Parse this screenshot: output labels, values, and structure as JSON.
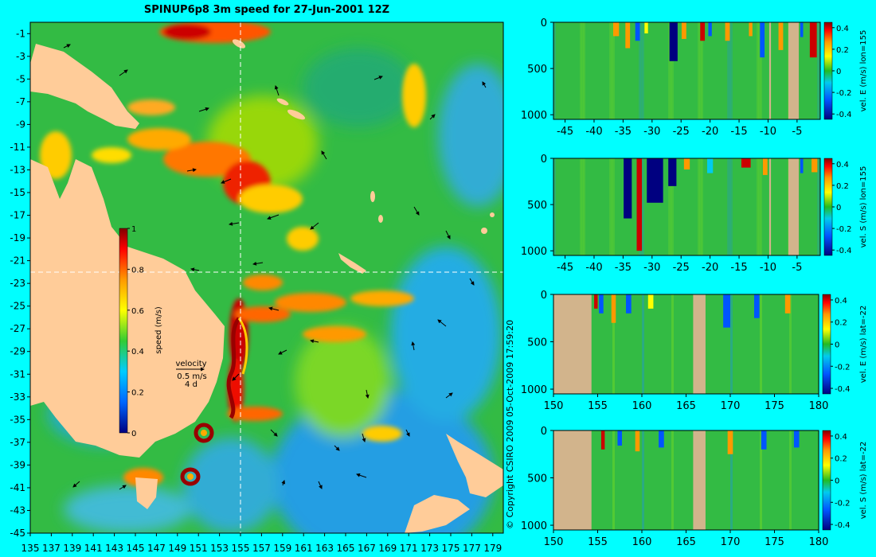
{
  "title": "SPINUP6p8 3m speed for 27-Jun-2001 12Z",
  "copyright": "© Copyright CSIRO 2009   05-Oct-2009 17:59:20",
  "colors": {
    "background": "#00ffff",
    "land": "#ffcc99",
    "section_land": "#d2b48c",
    "guide": "#ffffff"
  },
  "chart_data": [
    {
      "type": "heatmap",
      "title": "SPINUP6p8 3m speed for 27-Jun-2001 12Z",
      "xlabel": "",
      "ylabel": "",
      "x_ticks": [
        "135",
        "137",
        "139",
        "141",
        "143",
        "145",
        "147",
        "149",
        "151",
        "153",
        "155",
        "157",
        "159",
        "161",
        "163",
        "165",
        "167",
        "169",
        "171",
        "173",
        "175",
        "177",
        "179"
      ],
      "y_ticks": [
        "-1",
        "-3",
        "-5",
        "-7",
        "-9",
        "-11",
        "-13",
        "-15",
        "-17",
        "-19",
        "-21",
        "-23",
        "-25",
        "-27",
        "-29",
        "-31",
        "-33",
        "-35",
        "-37",
        "-39",
        "-41",
        "-43",
        "-45"
      ],
      "xlim": [
        135,
        180
      ],
      "ylim": [
        -45,
        0
      ],
      "guides": {
        "lon": 155,
        "lat": -22
      },
      "colorbar": {
        "label": "speed (m/s)",
        "ticks": [
          "0",
          "0.2",
          "0.4",
          "0.6",
          "0.8",
          "1"
        ],
        "range": [
          0,
          1
        ]
      },
      "vector_key": {
        "label": "velocity",
        "speed": "0.5 m/s",
        "interval": "4 d"
      }
    },
    {
      "type": "heatmap",
      "xlim": [
        -47,
        -1
      ],
      "ylim": [
        1050,
        0
      ],
      "x_ticks": [
        "-45",
        "-40",
        "-35",
        "-30",
        "-25",
        "-20",
        "-15",
        "-10",
        "-5"
      ],
      "y_ticks": [
        "0",
        "500",
        "1000"
      ],
      "colorbar": {
        "label": "vel. E (m/s) lon=155",
        "ticks": [
          "0.4",
          "0.2",
          "0",
          "-0.2",
          "-0.4"
        ],
        "range": [
          -0.45,
          0.45
        ]
      },
      "land_bands": [
        [
          -6.5,
          -4.7
        ],
        [
          -9.8,
          -9.5
        ]
      ],
      "features": [
        {
          "x": -36.2,
          "w": 1.0,
          "depth": 150,
          "value": 0.35
        },
        {
          "x": -34.2,
          "w": 0.8,
          "depth": 280,
          "value": 0.3
        },
        {
          "x": -32.5,
          "w": 0.8,
          "depth": 200,
          "value": -0.35
        },
        {
          "x": -31.0,
          "w": 0.6,
          "depth": 120,
          "value": 0.2
        },
        {
          "x": -26.3,
          "w": 1.4,
          "depth": 420,
          "value": -0.45
        },
        {
          "x": -24.5,
          "w": 0.8,
          "depth": 180,
          "value": 0.25
        },
        {
          "x": -21.3,
          "w": 0.8,
          "depth": 200,
          "value": 0.4
        },
        {
          "x": -20.0,
          "w": 0.6,
          "depth": 150,
          "value": -0.3
        },
        {
          "x": -17.0,
          "w": 0.8,
          "depth": 200,
          "value": 0.3
        },
        {
          "x": -13.0,
          "w": 0.6,
          "depth": 150,
          "value": 0.25
        },
        {
          "x": -11.0,
          "w": 0.8,
          "depth": 380,
          "value": -0.25
        },
        {
          "x": -7.8,
          "w": 0.8,
          "depth": 300,
          "value": 0.3
        },
        {
          "x": -4.2,
          "w": 0.5,
          "depth": 160,
          "value": -0.3
        },
        {
          "x": -2.2,
          "w": 1.2,
          "depth": 380,
          "value": 0.45
        }
      ]
    },
    {
      "type": "heatmap",
      "xlim": [
        -47,
        -1
      ],
      "ylim": [
        1050,
        0
      ],
      "x_ticks": [
        "-45",
        "-40",
        "-35",
        "-30",
        "-25",
        "-20",
        "-15",
        "-10",
        "-5"
      ],
      "y_ticks": [
        "0",
        "500",
        "1000"
      ],
      "colorbar": {
        "label": "vel. S (m/s) lon=155",
        "ticks": [
          "0.4",
          "0.2",
          "0",
          "-0.2",
          "-0.4"
        ],
        "range": [
          -0.45,
          0.45
        ]
      },
      "land_bands": [
        [
          -6.5,
          -4.7
        ],
        [
          -9.8,
          -9.5
        ]
      ],
      "features": [
        {
          "x": -34.2,
          "w": 1.4,
          "depth": 650,
          "value": -0.45
        },
        {
          "x": -32.2,
          "w": 0.9,
          "depth": 1000,
          "value": 0.45
        },
        {
          "x": -29.5,
          "w": 2.8,
          "depth": 480,
          "value": -0.45
        },
        {
          "x": -26.5,
          "w": 1.4,
          "depth": 300,
          "value": -0.4
        },
        {
          "x": -24.0,
          "w": 1.0,
          "depth": 120,
          "value": 0.3
        },
        {
          "x": -20.0,
          "w": 1.0,
          "depth": 160,
          "value": -0.2
        },
        {
          "x": -13.8,
          "w": 1.6,
          "depth": 100,
          "value": 0.45
        },
        {
          "x": -10.5,
          "w": 0.8,
          "depth": 180,
          "value": 0.35
        },
        {
          "x": -4.2,
          "w": 0.5,
          "depth": 160,
          "value": -0.3
        },
        {
          "x": -2.0,
          "w": 1.0,
          "depth": 150,
          "value": 0.25
        }
      ]
    },
    {
      "type": "heatmap",
      "xlim": [
        150,
        180
      ],
      "ylim": [
        1050,
        0
      ],
      "x_ticks": [
        "150",
        "155",
        "160",
        "165",
        "170",
        "175",
        "180"
      ],
      "y_ticks": [
        "0",
        "500",
        "1000"
      ],
      "colorbar": {
        "label": "vel. E (m/s) lat=-22",
        "ticks": [
          "0.4",
          "0.2",
          "0",
          "-0.2",
          "-0.4"
        ],
        "range": [
          -0.45,
          0.45
        ]
      },
      "land_bands": [
        [
          150,
          154.3
        ],
        [
          165.8,
          167.2
        ]
      ],
      "features": [
        {
          "x": 154.8,
          "w": 0.4,
          "depth": 150,
          "value": 0.45
        },
        {
          "x": 155.4,
          "w": 0.5,
          "depth": 200,
          "value": -0.35
        },
        {
          "x": 156.8,
          "w": 0.5,
          "depth": 300,
          "value": 0.3
        },
        {
          "x": 158.5,
          "w": 0.6,
          "depth": 200,
          "value": -0.25
        },
        {
          "x": 161.0,
          "w": 0.6,
          "depth": 150,
          "value": 0.2
        },
        {
          "x": 169.6,
          "w": 0.8,
          "depth": 350,
          "value": -0.35
        },
        {
          "x": 173.0,
          "w": 0.6,
          "depth": 250,
          "value": -0.25
        },
        {
          "x": 176.5,
          "w": 0.6,
          "depth": 200,
          "value": 0.3
        }
      ]
    },
    {
      "type": "heatmap",
      "xlim": [
        150,
        180
      ],
      "ylim": [
        1050,
        0
      ],
      "x_ticks": [
        "150",
        "155",
        "160",
        "165",
        "170",
        "175",
        "180"
      ],
      "y_ticks": [
        "0",
        "500",
        "1000"
      ],
      "colorbar": {
        "label": "vel. S (m/s) lat=-22",
        "ticks": [
          "0.4",
          "0.2",
          "0",
          "-0.2",
          "-0.4"
        ],
        "range": [
          -0.45,
          0.45
        ]
      },
      "land_bands": [
        [
          150,
          154.3
        ],
        [
          165.8,
          167.2
        ]
      ],
      "features": [
        {
          "x": 155.6,
          "w": 0.4,
          "depth": 200,
          "value": 0.4
        },
        {
          "x": 157.5,
          "w": 0.5,
          "depth": 160,
          "value": -0.3
        },
        {
          "x": 159.5,
          "w": 0.5,
          "depth": 220,
          "value": 0.3
        },
        {
          "x": 162.2,
          "w": 0.6,
          "depth": 180,
          "value": -0.25
        },
        {
          "x": 170.0,
          "w": 0.6,
          "depth": 250,
          "value": 0.3
        },
        {
          "x": 173.8,
          "w": 0.6,
          "depth": 200,
          "value": -0.3
        },
        {
          "x": 177.5,
          "w": 0.6,
          "depth": 180,
          "value": -0.35
        }
      ]
    }
  ]
}
